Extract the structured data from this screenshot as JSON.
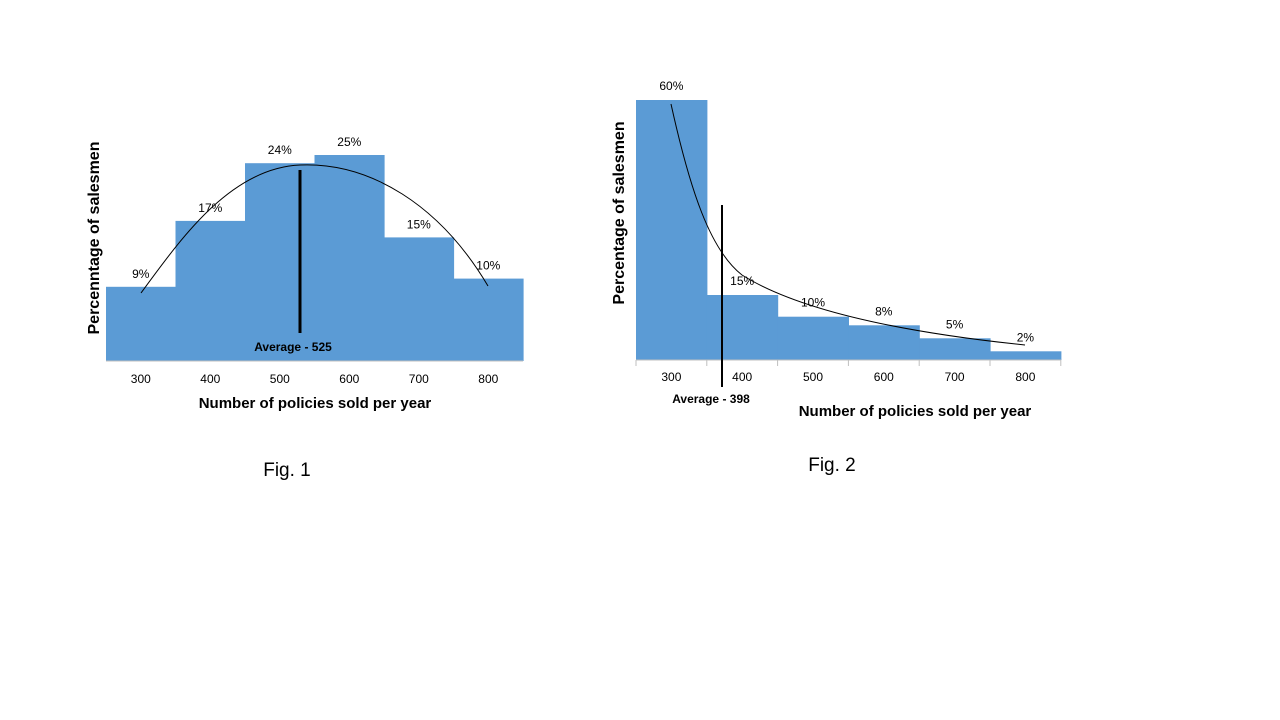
{
  "colors": {
    "bar": "#5b9bd5",
    "axis": "#bfbfbf",
    "line": "#000000"
  },
  "chart_data": [
    {
      "type": "bar",
      "caption": "Fig. 1",
      "categories": [
        "300",
        "400",
        "500",
        "600",
        "700",
        "800"
      ],
      "values": [
        9,
        17,
        24,
        25,
        15,
        10
      ],
      "data_labels": [
        "9%",
        "17%",
        "24%",
        "25%",
        "15%",
        "10%"
      ],
      "xlabel": "Number of policies sold per year",
      "ylabel": "Percenntage  of salesmen",
      "ylim": [
        0,
        25
      ],
      "average": {
        "value": 525,
        "label": "Average - 525"
      },
      "trendline": "bell curve"
    },
    {
      "type": "bar",
      "caption": "Fig. 2",
      "categories": [
        "300",
        "400",
        "500",
        "600",
        "700",
        "800"
      ],
      "values": [
        60,
        15,
        10,
        8,
        5,
        2
      ],
      "data_labels": [
        "60%",
        "15%",
        "10%",
        "8%",
        "5%",
        "2%"
      ],
      "xlabel": "Number of policies sold per year",
      "ylabel": "Percentage of salesmen",
      "ylim": [
        0,
        60
      ],
      "average": {
        "value": 398,
        "label": "Average - 398"
      },
      "trendline": "decaying curve"
    }
  ]
}
